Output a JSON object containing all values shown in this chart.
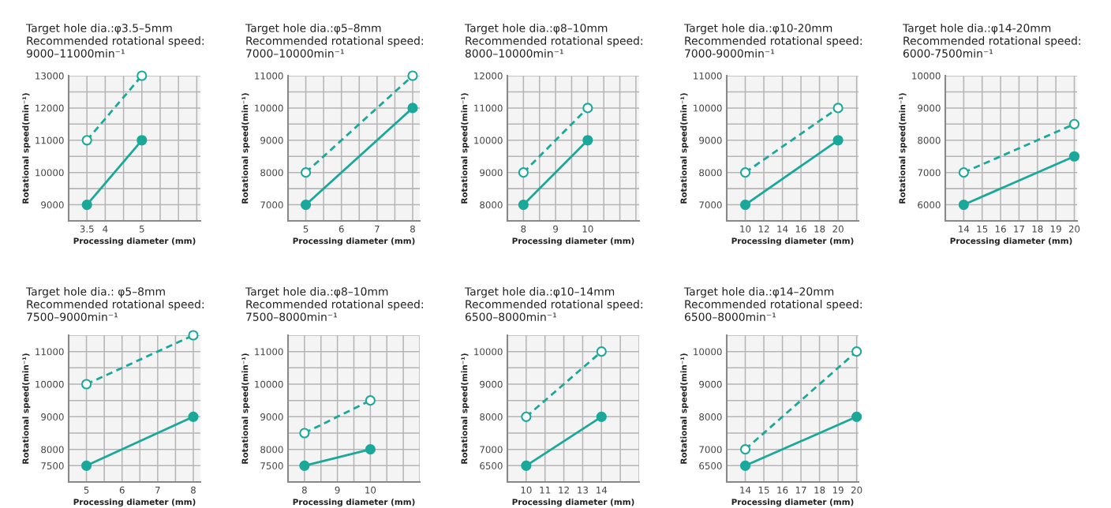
{
  "chart_data": [
    {
      "type": "line",
      "title": "Target hole dia.:φ3.5–5mm",
      "subtitle": "Recommended rotational speed:\n9000–11000min⁻¹",
      "xlabel": "Processing diameter (mm)",
      "ylabel": "Rotational speed(min⁻¹)",
      "grid": true,
      "marker": "circle",
      "xlim": [
        3,
        6.6
      ],
      "xticks": [
        3.5,
        4,
        {
          "value": 4.5,
          "label": null
        },
        5,
        {
          "value": 5.5,
          "label": null
        },
        {
          "value": 6,
          "label": null
        },
        {
          "value": 6.5,
          "label": null
        }
      ],
      "ylim": [
        8500,
        13000
      ],
      "yticks": [
        9000,
        {
          "value": 9500,
          "label": null
        },
        10000,
        {
          "value": 10500,
          "label": null
        },
        11000,
        {
          "value": 11500,
          "label": null
        },
        12000,
        {
          "value": 12500,
          "label": null
        },
        13000
      ],
      "x": [
        3.5,
        5
      ],
      "series": [
        {
          "color": "#1aa89a",
          "line_style": "dashed",
          "values": [
            11000,
            13000
          ]
        },
        {
          "color": "#1aa89a",
          "line_style": "solid",
          "values": [
            9000,
            11000
          ]
        }
      ]
    },
    {
      "type": "line",
      "title": "Target hole dia.:φ5–8mm",
      "subtitle": "Recommended rotational speed:\n7000–10000min⁻¹",
      "xlabel": "Processing diameter (mm)",
      "ylabel": "Rotational speed(min⁻¹)",
      "grid": true,
      "marker": "circle",
      "xlim": [
        4.5,
        8.2
      ],
      "xticks": [
        5,
        {
          "value": 5.5,
          "label": null
        },
        6,
        {
          "value": 6.5,
          "label": null
        },
        7,
        {
          "value": 7.5,
          "label": null
        },
        8
      ],
      "ylim": [
        6500,
        11000
      ],
      "yticks": [
        7000,
        {
          "value": 7500,
          "label": null
        },
        8000,
        {
          "value": 8500,
          "label": null
        },
        9000,
        {
          "value": 9500,
          "label": null
        },
        10000,
        {
          "value": 10500,
          "label": null
        },
        11000
      ],
      "x": [
        5,
        8
      ],
      "series": [
        {
          "color": "#1aa89a",
          "line_style": "dashed",
          "values": [
            8000,
            11000
          ]
        },
        {
          "color": "#1aa89a",
          "line_style": "solid",
          "values": [
            7000,
            10000
          ]
        }
      ]
    },
    {
      "type": "line",
      "title": "Target hole dia.:φ8–10mm",
      "subtitle": "Recommended rotational speed:\n8000–10000min⁻¹",
      "xlabel": "Processing diameter (mm)",
      "ylabel": "Rotational speed(min⁻¹)",
      "grid": true,
      "marker": "circle",
      "xlim": [
        7.5,
        11.6
      ],
      "xticks": [
        8,
        {
          "value": 8.5,
          "label": null
        },
        9,
        {
          "value": 9.5,
          "label": null
        },
        10,
        {
          "value": 10.5,
          "label": null
        },
        {
          "value": 11,
          "label": null
        },
        {
          "value": 11.5,
          "label": null
        }
      ],
      "ylim": [
        7500,
        12000
      ],
      "yticks": [
        8000,
        {
          "value": 8500,
          "label": null
        },
        9000,
        {
          "value": 9500,
          "label": null
        },
        10000,
        {
          "value": 10500,
          "label": null
        },
        11000,
        {
          "value": 11500,
          "label": null
        },
        12000
      ],
      "x": [
        8,
        10
      ],
      "series": [
        {
          "color": "#1aa89a",
          "line_style": "dashed",
          "values": [
            9000,
            11000
          ]
        },
        {
          "color": "#1aa89a",
          "line_style": "solid",
          "values": [
            8000,
            10000
          ]
        }
      ]
    },
    {
      "type": "line",
      "title": "Target hole dia.:φ10-20mm",
      "subtitle": "Recommended rotational speed:\n7000-9000min⁻¹",
      "xlabel": "Processing diameter (mm)",
      "ylabel": "Rotational speed(min⁻¹)",
      "grid": true,
      "marker": "circle",
      "xlim": [
        8,
        22.2
      ],
      "xticks": [
        10,
        12,
        14,
        16,
        18,
        20,
        {
          "value": 22,
          "label": null
        }
      ],
      "ylim": [
        6500,
        11000
      ],
      "yticks": [
        7000,
        {
          "value": 7500,
          "label": null
        },
        8000,
        {
          "value": 8500,
          "label": null
        },
        9000,
        {
          "value": 9500,
          "label": null
        },
        10000,
        {
          "value": 10500,
          "label": null
        },
        11000
      ],
      "x": [
        10,
        20
      ],
      "series": [
        {
          "color": "#1aa89a",
          "line_style": "dashed",
          "values": [
            8000,
            10000
          ]
        },
        {
          "color": "#1aa89a",
          "line_style": "solid",
          "values": [
            7000,
            9000
          ]
        }
      ]
    },
    {
      "type": "line",
      "title": "Target hole dia.:φ14-20mm",
      "subtitle": "Recommended rotational speed:\n6000-7500min⁻¹",
      "xlabel": "Processing diameter (mm)",
      "ylabel": "Rotational speed(min⁻¹)",
      "grid": true,
      "marker": "circle",
      "xlim": [
        13,
        20.15
      ],
      "xticks": [
        14,
        15,
        16,
        17,
        18,
        19,
        20
      ],
      "ylim": [
        5500,
        10000
      ],
      "yticks": [
        6000,
        {
          "value": 6500,
          "label": null
        },
        7000,
        {
          "value": 7500,
          "label": null
        },
        8000,
        {
          "value": 8500,
          "label": null
        },
        9000,
        {
          "value": 9500,
          "label": null
        },
        10000
      ],
      "x": [
        14,
        20
      ],
      "series": [
        {
          "color": "#1aa89a",
          "line_style": "dashed",
          "values": [
            7000,
            8500
          ]
        },
        {
          "color": "#1aa89a",
          "line_style": "solid",
          "values": [
            6000,
            7500
          ]
        }
      ]
    },
    {
      "type": "line",
      "title": "Target hole dia.: φ5–8mm",
      "subtitle": "Recommended rotational speed:\n7500–9000min⁻¹",
      "xlabel": "Processing diameter (mm)",
      "ylabel": "Rotational speed(min⁻¹)",
      "grid": true,
      "marker": "circle",
      "xlim": [
        4.5,
        8.2
      ],
      "xticks": [
        5,
        {
          "value": 5.5,
          "label": null
        },
        6,
        {
          "value": 6.5,
          "label": null
        },
        7,
        {
          "value": 7.5,
          "label": null
        },
        8
      ],
      "ylim": [
        7000,
        11500
      ],
      "yticks": [
        7500,
        8000,
        {
          "value": 8500,
          "label": null
        },
        9000,
        {
          "value": 9500,
          "label": null
        },
        10000,
        {
          "value": 10500,
          "label": null
        },
        11000,
        {
          "value": 11500,
          "label": null
        }
      ],
      "x": [
        5,
        8
      ],
      "series": [
        {
          "color": "#1aa89a",
          "line_style": "dashed",
          "values": [
            10000,
            11500
          ]
        },
        {
          "color": "#1aa89a",
          "line_style": "solid",
          "values": [
            7500,
            9000
          ]
        }
      ]
    },
    {
      "type": "line",
      "title": "Target hole dia.:φ8–10mm",
      "subtitle": "Recommended rotational speed:\n7500–8000min⁻¹",
      "xlabel": "Processing diameter (mm)",
      "ylabel": "Rotational speed(min⁻¹)",
      "grid": true,
      "marker": "circle",
      "xlim": [
        7.5,
        11.5
      ],
      "xticks": [
        8,
        {
          "value": 8.5,
          "label": null
        },
        9,
        {
          "value": 9.5,
          "label": null
        },
        10,
        {
          "value": 10.5,
          "label": null
        },
        {
          "value": 11,
          "label": null
        },
        {
          "value": 11.5,
          "label": null
        }
      ],
      "ylim": [
        7000,
        11500
      ],
      "yticks": [
        7500,
        8000,
        {
          "value": 8500,
          "label": null
        },
        9000,
        {
          "value": 9500,
          "label": null
        },
        10000,
        {
          "value": 10500,
          "label": null
        },
        11000,
        {
          "value": 11500,
          "label": null
        }
      ],
      "x": [
        8,
        10
      ],
      "series": [
        {
          "color": "#1aa89a",
          "line_style": "dashed",
          "values": [
            8500,
            9500
          ]
        },
        {
          "color": "#1aa89a",
          "line_style": "solid",
          "values": [
            7500,
            8000
          ]
        }
      ]
    },
    {
      "type": "line",
      "title": "Target hole dia.:φ10–14mm",
      "subtitle": "Recommended rotational speed:\n6500–8000min⁻¹",
      "xlabel": "Processing diameter (mm)",
      "ylabel": "Rotational speed(min⁻¹)",
      "grid": true,
      "marker": "circle",
      "xlim": [
        9,
        16
      ],
      "xticks": [
        10,
        11,
        12,
        13,
        14,
        {
          "value": 15,
          "label": null
        },
        {
          "value": 16,
          "label": null
        }
      ],
      "ylim": [
        6000,
        10500
      ],
      "yticks": [
        6500,
        7000,
        {
          "value": 7500,
          "label": null
        },
        8000,
        {
          "value": 8500,
          "label": null
        },
        9000,
        {
          "value": 9500,
          "label": null
        },
        10000,
        {
          "value": 10500,
          "label": null
        }
      ],
      "x": [
        10,
        14
      ],
      "series": [
        {
          "color": "#1aa89a",
          "line_style": "dashed",
          "values": [
            8000,
            10000
          ]
        },
        {
          "color": "#1aa89a",
          "line_style": "solid",
          "values": [
            6500,
            8000
          ]
        }
      ]
    },
    {
      "type": "line",
      "title": "Target hole dia.:φ14–20mm",
      "subtitle": "Recommended rotational speed:\n6500–8000min⁻¹",
      "xlabel": "Processing diameter (mm)",
      "ylabel": "Rotational speed(min⁻¹)",
      "grid": true,
      "marker": "circle",
      "xlim": [
        13,
        20.1
      ],
      "xticks": [
        14,
        15,
        16,
        17,
        18,
        19,
        20
      ],
      "ylim": [
        6000,
        10500
      ],
      "yticks": [
        6500,
        7000,
        {
          "value": 7500,
          "label": null
        },
        8000,
        {
          "value": 8500,
          "label": null
        },
        9000,
        {
          "value": 9500,
          "label": null
        },
        10000,
        {
          "value": 10500,
          "label": null
        }
      ],
      "x": [
        14,
        20
      ],
      "series": [
        {
          "color": "#1aa89a",
          "line_style": "dashed",
          "values": [
            7000,
            10000
          ]
        },
        {
          "color": "#1aa89a",
          "line_style": "solid",
          "values": [
            6500,
            8000
          ]
        }
      ]
    }
  ]
}
